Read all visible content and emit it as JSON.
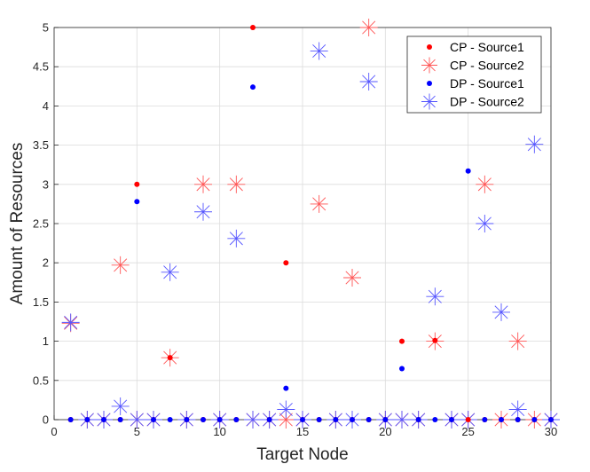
{
  "chart_data": {
    "type": "scatter",
    "xlabel": "Target Node",
    "ylabel": "Amount of Resources",
    "xlim": [
      0,
      30
    ],
    "ylim": [
      0,
      5
    ],
    "x_ticks": [
      "0",
      "5",
      "10",
      "15",
      "20",
      "25",
      "30"
    ],
    "y_ticks": [
      "0",
      "0.5",
      "1",
      "1.5",
      "2",
      "2.5",
      "3",
      "3.5",
      "4",
      "4.5",
      "5"
    ],
    "grid": true,
    "legend_position": "top-right",
    "series": [
      {
        "name": "CP - Source1",
        "marker": "dot",
        "color": "#ff0000",
        "points": [
          [
            1,
            0
          ],
          [
            2,
            0
          ],
          [
            3,
            0
          ],
          [
            4,
            0
          ],
          [
            5,
            3
          ],
          [
            6,
            0
          ],
          [
            7,
            0.79
          ],
          [
            8,
            0
          ],
          [
            9,
            0
          ],
          [
            10,
            0
          ],
          [
            11,
            0
          ],
          [
            12,
            5
          ],
          [
            13,
            0
          ],
          [
            14,
            2
          ],
          [
            15,
            0
          ],
          [
            16,
            0
          ],
          [
            17,
            0
          ],
          [
            18,
            0
          ],
          [
            19,
            0
          ],
          [
            20,
            0
          ],
          [
            21,
            1
          ],
          [
            22,
            0
          ],
          [
            23,
            1.01
          ],
          [
            24,
            0
          ],
          [
            25,
            0
          ],
          [
            26,
            0
          ],
          [
            27,
            0
          ],
          [
            28,
            0
          ],
          [
            29,
            0
          ],
          [
            30,
            0
          ]
        ]
      },
      {
        "name": "CP - Source2",
        "marker": "star",
        "color": "#ff5555",
        "points": [
          [
            1,
            1.23
          ],
          [
            2,
            0
          ],
          [
            3,
            0
          ],
          [
            4,
            1.97
          ],
          [
            5,
            0
          ],
          [
            6,
            0
          ],
          [
            7,
            0.79
          ],
          [
            8,
            0
          ],
          [
            9,
            3
          ],
          [
            10,
            0
          ],
          [
            11,
            3
          ],
          [
            12,
            0
          ],
          [
            13,
            0
          ],
          [
            14,
            0
          ],
          [
            15,
            0
          ],
          [
            16,
            2.75
          ],
          [
            17,
            0
          ],
          [
            18,
            1.81
          ],
          [
            19,
            5
          ],
          [
            20,
            0
          ],
          [
            21,
            0
          ],
          [
            22,
            0
          ],
          [
            23,
            1
          ],
          [
            24,
            0
          ],
          [
            25,
            0
          ],
          [
            26,
            3
          ],
          [
            27,
            0
          ],
          [
            28,
            1
          ],
          [
            29,
            0
          ],
          [
            30,
            0
          ]
        ]
      },
      {
        "name": "DP - Source1",
        "marker": "dot",
        "color": "#0000ff",
        "points": [
          [
            1,
            0
          ],
          [
            2,
            0
          ],
          [
            3,
            0
          ],
          [
            4,
            0
          ],
          [
            5,
            2.78
          ],
          [
            6,
            0
          ],
          [
            7,
            0
          ],
          [
            8,
            0
          ],
          [
            9,
            0
          ],
          [
            10,
            0
          ],
          [
            11,
            0
          ],
          [
            12,
            4.24
          ],
          [
            13,
            0
          ],
          [
            14,
            0.4
          ],
          [
            15,
            0
          ],
          [
            16,
            0
          ],
          [
            17,
            0
          ],
          [
            18,
            0
          ],
          [
            19,
            0
          ],
          [
            20,
            0
          ],
          [
            21,
            0.65
          ],
          [
            22,
            0
          ],
          [
            23,
            0
          ],
          [
            24,
            0
          ],
          [
            25,
            3.17
          ],
          [
            26,
            0
          ],
          [
            27,
            0
          ],
          [
            28,
            0
          ],
          [
            29,
            0
          ],
          [
            30,
            0
          ]
        ]
      },
      {
        "name": "DP - Source2",
        "marker": "star",
        "color": "#5555ff",
        "points": [
          [
            1,
            1.24
          ],
          [
            2,
            0
          ],
          [
            3,
            0
          ],
          [
            4,
            0.17
          ],
          [
            5,
            0
          ],
          [
            6,
            0
          ],
          [
            7,
            1.88
          ],
          [
            8,
            0
          ],
          [
            9,
            2.65
          ],
          [
            10,
            0
          ],
          [
            11,
            2.31
          ],
          [
            12,
            0
          ],
          [
            13,
            0
          ],
          [
            14,
            0.13
          ],
          [
            15,
            0
          ],
          [
            16,
            4.7
          ],
          [
            17,
            0
          ],
          [
            18,
            0
          ],
          [
            19,
            4.31
          ],
          [
            20,
            0
          ],
          [
            21,
            0
          ],
          [
            22,
            0
          ],
          [
            23,
            1.57
          ],
          [
            24,
            0
          ],
          [
            25,
            0
          ],
          [
            26,
            2.5
          ],
          [
            27,
            1.37
          ],
          [
            28,
            0.13
          ],
          [
            29,
            3.51
          ],
          [
            30,
            0
          ]
        ]
      }
    ]
  }
}
